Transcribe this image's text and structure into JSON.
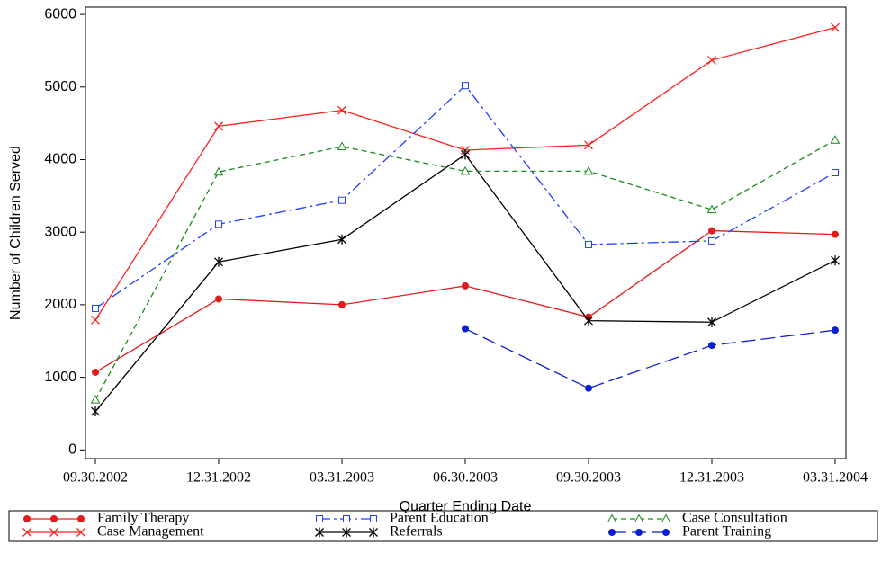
{
  "chart_data": {
    "type": "line",
    "x_label": "Quarter Ending Date",
    "y_label": "Number of Children Served",
    "categories": [
      "09.30.2002",
      "12.31.2002",
      "03.31.2003",
      "06.30.2003",
      "09.30.2003",
      "12.31.2003",
      "03.31.2004"
    ],
    "ylim": [
      -120,
      6100
    ],
    "yticks": [
      0,
      1000,
      2000,
      3000,
      4000,
      5000,
      6000
    ],
    "grid": false,
    "legend": "bottom",
    "series": [
      {
        "name": "Family Therapy",
        "color": "#e31a1c",
        "marker": "circle",
        "line_style": "solid",
        "values": [
          1070,
          2080,
          2000,
          2260,
          1830,
          3020,
          2970
        ]
      },
      {
        "name": "Case Management",
        "color": "#ff2020",
        "marker": "x",
        "line_style": "solid",
        "values": [
          1790,
          4460,
          4680,
          4130,
          4200,
          5370,
          5820
        ]
      },
      {
        "name": "Parent Education",
        "color": "#1f3fff",
        "marker": "square",
        "line_style": "dashdot",
        "values": [
          1950,
          3110,
          3440,
          5020,
          2830,
          2880,
          3820
        ]
      },
      {
        "name": "Referrals",
        "color": "#000000",
        "marker": "star",
        "line_style": "solid",
        "values": [
          530,
          2590,
          2900,
          4070,
          1780,
          1760,
          2610
        ]
      },
      {
        "name": "Case Consultation",
        "color": "#1a8a1a",
        "marker": "triangle",
        "line_style": "dashed",
        "values": [
          690,
          3830,
          4180,
          3840,
          3840,
          3310,
          4270
        ]
      },
      {
        "name": "Parent Training",
        "color": "#0a1fd0",
        "marker": "circle",
        "line_style": "longdash",
        "values": [
          null,
          null,
          null,
          1670,
          850,
          1440,
          1650
        ]
      }
    ]
  }
}
